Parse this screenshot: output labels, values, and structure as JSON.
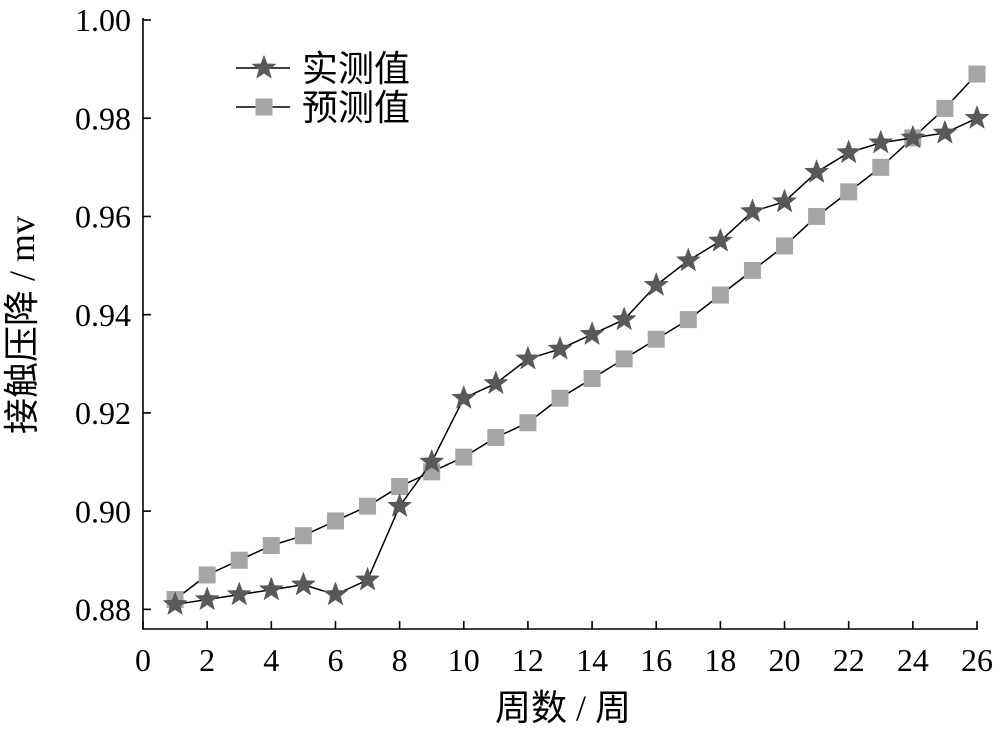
{
  "chart_data": {
    "type": "line",
    "xlabel": "周数 / 周",
    "ylabel": "接触压降 / mv",
    "xlim": [
      0,
      26
    ],
    "ylim": [
      0.876,
      1.0
    ],
    "xticks": [
      0,
      2,
      4,
      6,
      8,
      10,
      12,
      14,
      16,
      18,
      20,
      22,
      24,
      26
    ],
    "yticks": [
      "0.88",
      "0.90",
      "0.92",
      "0.94",
      "0.96",
      "0.98",
      "1.00"
    ],
    "grid": false,
    "legend": "top-left",
    "x": [
      1,
      2,
      3,
      4,
      5,
      6,
      7,
      8,
      9,
      10,
      11,
      12,
      13,
      14,
      15,
      16,
      17,
      18,
      19,
      20,
      21,
      22,
      23,
      24,
      25,
      26
    ],
    "series": [
      {
        "name": "实测值",
        "marker": "star",
        "color": "#595959",
        "values": [
          0.881,
          0.882,
          0.883,
          0.884,
          0.885,
          0.883,
          0.886,
          0.901,
          0.91,
          0.923,
          0.926,
          0.931,
          0.933,
          0.936,
          0.939,
          0.946,
          0.951,
          0.955,
          0.961,
          0.963,
          0.969,
          0.973,
          0.975,
          0.976,
          0.977,
          0.98
        ]
      },
      {
        "name": "预测值",
        "marker": "square",
        "color": "#a6a6a6",
        "values": [
          0.882,
          0.887,
          0.89,
          0.893,
          0.895,
          0.898,
          0.901,
          0.905,
          0.908,
          0.911,
          0.915,
          0.918,
          0.923,
          0.927,
          0.931,
          0.935,
          0.939,
          0.944,
          0.949,
          0.954,
          0.96,
          0.965,
          0.97,
          0.976,
          0.982,
          0.989
        ]
      }
    ]
  }
}
